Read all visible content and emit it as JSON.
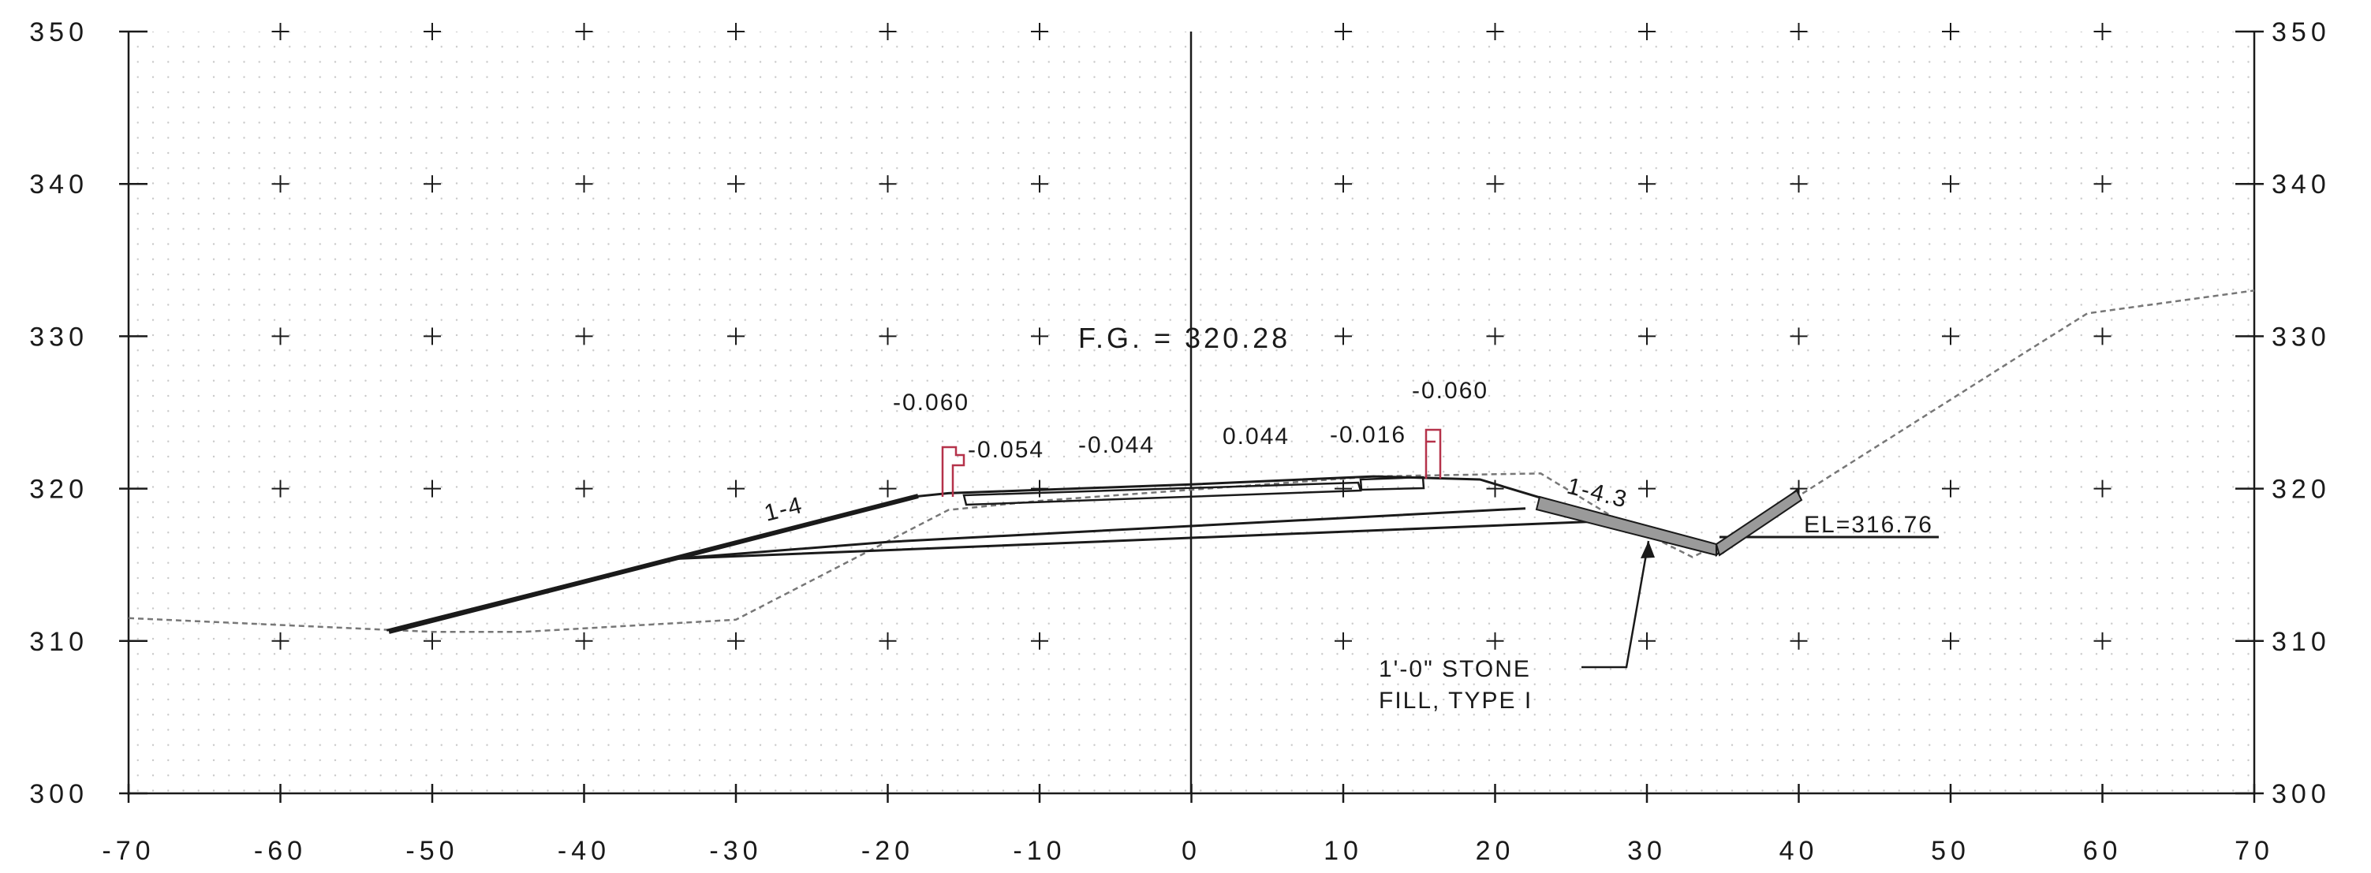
{
  "x_axis_ticks": [
    "-70",
    "-60",
    "-50",
    "-40",
    "-30",
    "-20",
    "-10",
    "0",
    "10",
    "20",
    "30",
    "40",
    "50",
    "60",
    "70"
  ],
  "y_axis_ticks": [
    "300",
    "310",
    "320",
    "330",
    "340",
    "350"
  ],
  "labels": {
    "fg": "F.G. = 320.28",
    "slope_left_lane": "-0.054",
    "lane_left": "-0.044",
    "lane_right": "0.044",
    "slope_right_lane": "-0.016",
    "barrier_left": "-0.060",
    "barrier_right": "-0.060",
    "slope_left": "1-4",
    "slope_right": "1-4.3",
    "ditch_elevation": "EL=316.76",
    "stone_fill_line1": "1'-0\" STONE",
    "stone_fill_line2": "FILL, TYPE I"
  },
  "colors": {
    "grid_dot": "#c8c8c8",
    "line": "#1a1a1a",
    "ground": "#777777",
    "barrier": "#b5324a",
    "stone": "#9a9a9a"
  },
  "chart_data": {
    "type": "cross-section",
    "xlim": [
      -70,
      70
    ],
    "ylim": [
      300,
      350
    ],
    "existing_ground": [
      [
        -70,
        311.5
      ],
      [
        -50,
        310.6
      ],
      [
        -44,
        310.6
      ],
      [
        -30,
        311.4
      ],
      [
        -16,
        318.6
      ],
      [
        -10,
        319.2
      ],
      [
        12,
        320.8
      ],
      [
        23,
        321
      ],
      [
        28,
        318
      ],
      [
        33,
        315.5
      ],
      [
        36,
        317
      ],
      [
        55,
        329
      ],
      [
        59,
        331.5
      ],
      [
        70,
        333
      ]
    ],
    "proposed_grade": [
      [
        -53,
        310.7
      ],
      [
        -18,
        319.5
      ],
      [
        -16,
        319.7
      ],
      [
        0,
        320.28
      ],
      [
        12,
        320.8
      ],
      [
        19,
        320.6
      ],
      [
        23,
        319.4
      ],
      [
        35,
        315.8
      ],
      [
        40,
        320
      ]
    ],
    "subgrade": [
      [
        -34,
        315.4
      ],
      [
        28,
        317.9
      ],
      [
        35,
        316.2
      ]
    ],
    "pavement_bottom": [
      [
        -34,
        315.4
      ],
      [
        -20,
        316.5
      ],
      [
        22,
        318.7
      ]
    ],
    "barrier_positions": [
      -16,
      15.5
    ],
    "stone_fill_range": [
      23,
      40
    ],
    "ditch_elevation": 316.76,
    "finish_grade": 320.28
  }
}
